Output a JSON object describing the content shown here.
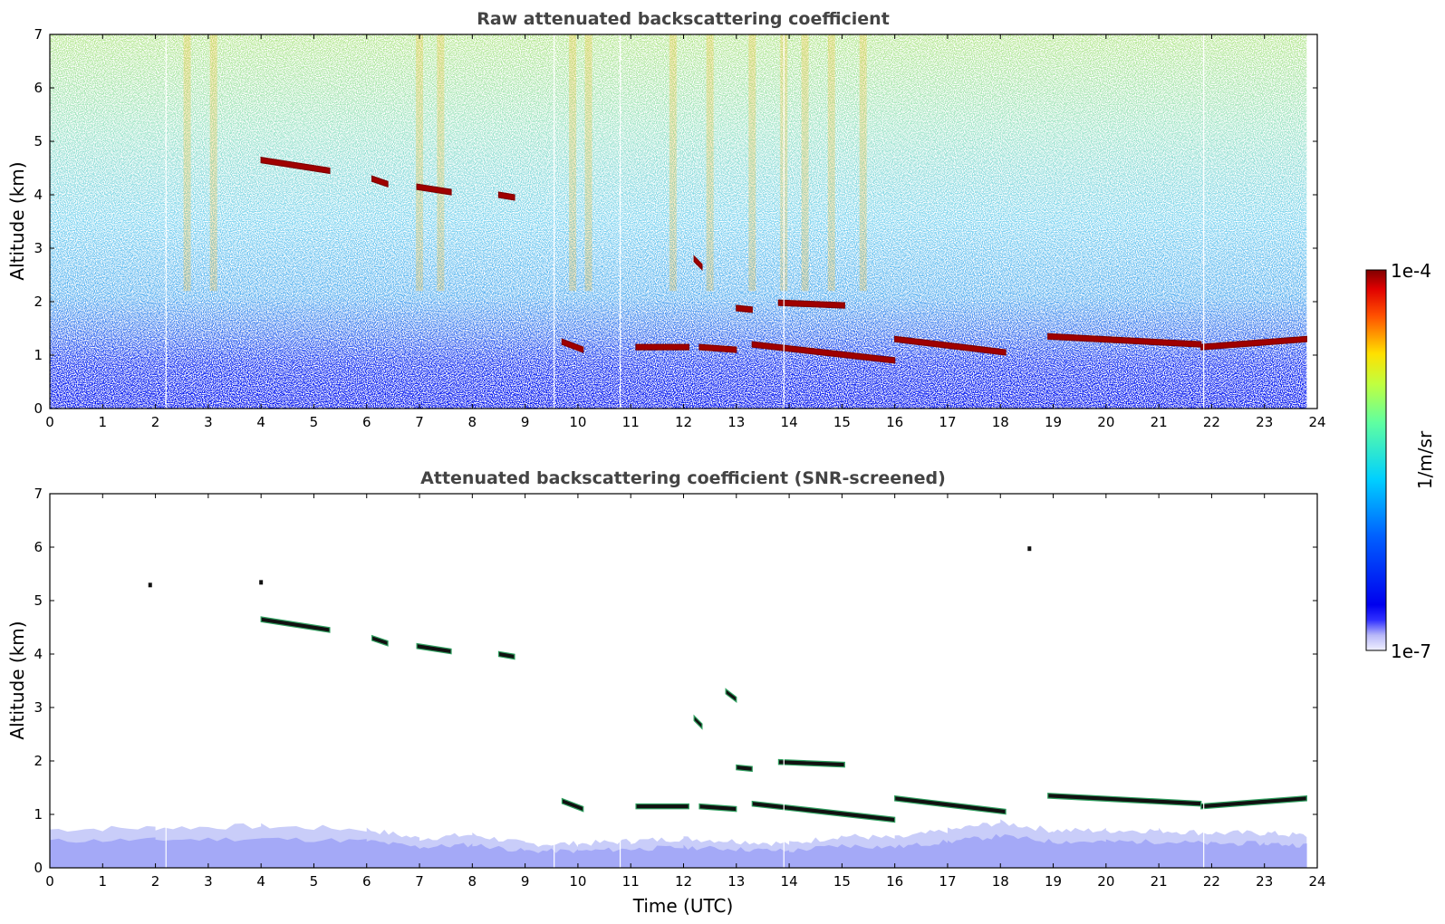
{
  "colorbar": {
    "max_label": "1e-4",
    "min_label": "1e-7",
    "unit_label": "1/m/sr",
    "scale": "log",
    "colormap": "jet"
  },
  "chart_data": [
    {
      "type": "heatmap",
      "title": "Raw attenuated backscattering coefficient",
      "xlabel": "",
      "ylabel": "Altitude (km)",
      "xlim": [
        0,
        24
      ],
      "ylim": [
        0,
        7
      ],
      "x_ticks": [
        "0",
        "1",
        "2",
        "3",
        "4",
        "5",
        "6",
        "7",
        "8",
        "9",
        "10",
        "11",
        "12",
        "13",
        "14",
        "15",
        "16",
        "17",
        "18",
        "19",
        "20",
        "21",
        "22",
        "23",
        "24"
      ],
      "y_ticks": [
        "0",
        "1",
        "2",
        "3",
        "4",
        "5",
        "6",
        "7"
      ],
      "data_time_range": [
        0,
        23.8
      ],
      "gap_times": [
        2.2,
        9.55,
        10.8,
        13.9,
        21.85
      ],
      "cloud_layers": [
        {
          "t_start": 4.0,
          "t_end": 5.3,
          "alt_start": 4.65,
          "alt_end": 4.45
        },
        {
          "t_start": 6.1,
          "t_end": 6.4,
          "alt_start": 4.3,
          "alt_end": 4.2
        },
        {
          "t_start": 6.95,
          "t_end": 7.6,
          "alt_start": 4.15,
          "alt_end": 4.05
        },
        {
          "t_start": 8.5,
          "t_end": 8.8,
          "alt_start": 4.0,
          "alt_end": 3.95
        },
        {
          "t_start": 12.2,
          "t_end": 12.35,
          "alt_start": 2.8,
          "alt_end": 2.65
        },
        {
          "t_start": 13.0,
          "t_end": 13.3,
          "alt_start": 1.88,
          "alt_end": 1.85
        },
        {
          "t_start": 13.8,
          "t_end": 15.05,
          "alt_start": 1.98,
          "alt_end": 1.93
        },
        {
          "t_start": 9.7,
          "t_end": 10.1,
          "alt_start": 1.25,
          "alt_end": 1.1
        },
        {
          "t_start": 11.1,
          "t_end": 12.1,
          "alt_start": 1.15,
          "alt_end": 1.15
        },
        {
          "t_start": 12.3,
          "t_end": 13.0,
          "alt_start": 1.15,
          "alt_end": 1.1
        },
        {
          "t_start": 13.3,
          "t_end": 16.0,
          "alt_start": 1.2,
          "alt_end": 0.9
        },
        {
          "t_start": 16.0,
          "t_end": 18.1,
          "alt_start": 1.3,
          "alt_end": 1.05
        },
        {
          "t_start": 18.9,
          "t_end": 21.8,
          "alt_start": 1.35,
          "alt_end": 1.2
        },
        {
          "t_start": 21.8,
          "t_end": 23.8,
          "alt_start": 1.15,
          "alt_end": 1.3
        }
      ]
    },
    {
      "type": "heatmap",
      "title": "Attenuated backscattering coefficient (SNR-screened)",
      "xlabel": "Time (UTC)",
      "ylabel": "Altitude (km)",
      "xlim": [
        0,
        24
      ],
      "ylim": [
        0,
        7
      ],
      "x_ticks": [
        "0",
        "1",
        "2",
        "3",
        "4",
        "5",
        "6",
        "7",
        "8",
        "9",
        "10",
        "11",
        "12",
        "13",
        "14",
        "15",
        "16",
        "17",
        "18",
        "19",
        "20",
        "21",
        "22",
        "23",
        "24"
      ],
      "y_ticks": [
        "0",
        "1",
        "2",
        "3",
        "4",
        "5",
        "6",
        "7"
      ],
      "data_time_range": [
        0,
        23.8
      ],
      "gap_times": [
        2.2,
        9.55,
        10.8,
        13.9,
        21.85
      ],
      "boundary_layer_top": [
        {
          "t": 0,
          "alt": 0.72
        },
        {
          "t": 2,
          "alt": 0.75
        },
        {
          "t": 4,
          "alt": 0.78
        },
        {
          "t": 6,
          "alt": 0.72
        },
        {
          "t": 7,
          "alt": 0.55
        },
        {
          "t": 8,
          "alt": 0.62
        },
        {
          "t": 9,
          "alt": 0.45
        },
        {
          "t": 10,
          "alt": 0.45
        },
        {
          "t": 11,
          "alt": 0.5
        },
        {
          "t": 12,
          "alt": 0.55
        },
        {
          "t": 13,
          "alt": 0.5
        },
        {
          "t": 14,
          "alt": 0.45
        },
        {
          "t": 15,
          "alt": 0.6
        },
        {
          "t": 16,
          "alt": 0.55
        },
        {
          "t": 17,
          "alt": 0.7
        },
        {
          "t": 18,
          "alt": 0.85
        },
        {
          "t": 19,
          "alt": 0.7
        },
        {
          "t": 20,
          "alt": 0.7
        },
        {
          "t": 21,
          "alt": 0.7
        },
        {
          "t": 22,
          "alt": 0.65
        },
        {
          "t": 23,
          "alt": 0.65
        },
        {
          "t": 23.8,
          "alt": 0.6
        }
      ],
      "cloud_layers": [
        {
          "t_start": 4.0,
          "t_end": 5.3,
          "alt_start": 4.65,
          "alt_end": 4.45
        },
        {
          "t_start": 6.1,
          "t_end": 6.4,
          "alt_start": 4.3,
          "alt_end": 4.2
        },
        {
          "t_start": 6.95,
          "t_end": 7.6,
          "alt_start": 4.15,
          "alt_end": 4.05
        },
        {
          "t_start": 8.5,
          "t_end": 8.8,
          "alt_start": 4.0,
          "alt_end": 3.95
        },
        {
          "t_start": 12.2,
          "t_end": 12.35,
          "alt_start": 2.8,
          "alt_end": 2.65
        },
        {
          "t_start": 12.8,
          "t_end": 13.0,
          "alt_start": 3.3,
          "alt_end": 3.15
        },
        {
          "t_start": 13.0,
          "t_end": 13.3,
          "alt_start": 1.88,
          "alt_end": 1.85
        },
        {
          "t_start": 13.8,
          "t_end": 15.05,
          "alt_start": 1.98,
          "alt_end": 1.93
        },
        {
          "t_start": 9.7,
          "t_end": 10.1,
          "alt_start": 1.25,
          "alt_end": 1.1
        },
        {
          "t_start": 11.1,
          "t_end": 12.1,
          "alt_start": 1.15,
          "alt_end": 1.15
        },
        {
          "t_start": 12.3,
          "t_end": 13.0,
          "alt_start": 1.15,
          "alt_end": 1.1
        },
        {
          "t_start": 13.3,
          "t_end": 16.0,
          "alt_start": 1.2,
          "alt_end": 0.9
        },
        {
          "t_start": 16.0,
          "t_end": 18.1,
          "alt_start": 1.3,
          "alt_end": 1.05
        },
        {
          "t_start": 18.9,
          "t_end": 21.8,
          "alt_start": 1.35,
          "alt_end": 1.2
        },
        {
          "t_start": 21.8,
          "t_end": 23.8,
          "alt_start": 1.15,
          "alt_end": 1.3
        }
      ],
      "isolated_points": [
        {
          "t": 18.55,
          "alt": 5.98
        },
        {
          "t": 4.0,
          "alt": 5.35
        },
        {
          "t": 1.9,
          "alt": 5.3
        }
      ]
    }
  ]
}
